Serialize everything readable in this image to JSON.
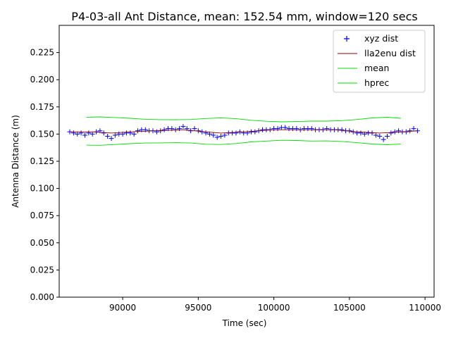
{
  "chart_data": {
    "type": "scatter",
    "title": "P4-03-all Ant Distance, mean: 152.54 mm, window=120 secs",
    "xlabel": "Time (sec)",
    "ylabel": "Antenna Distance (m)",
    "xlim": [
      85800,
      110600
    ],
    "ylim": [
      0.0,
      0.25
    ],
    "x_ticks": [
      90000,
      95000,
      100000,
      105000,
      110000
    ],
    "x_tick_labels": [
      "90000",
      "95000",
      "100000",
      "105000",
      "110000"
    ],
    "y_ticks": [
      0.0,
      0.025,
      0.05,
      0.075,
      0.1,
      0.125,
      0.15,
      0.175,
      0.2,
      0.225
    ],
    "y_tick_labels": [
      "0.000",
      "0.025",
      "0.050",
      "0.075",
      "0.100",
      "0.125",
      "0.150",
      "0.175",
      "0.200",
      "0.225"
    ],
    "grid": false,
    "legend_position": "top-right",
    "legend": [
      {
        "label": "xyz dist",
        "marker": "plus",
        "color": "#0000ff"
      },
      {
        "label": "lla2enu dist",
        "marker": "line",
        "color": "#8b0000"
      },
      {
        "label": "mean",
        "marker": "line",
        "color": "#00dd00"
      },
      {
        "label": "hprec",
        "marker": "line",
        "color": "#00dd00"
      }
    ],
    "series": [
      {
        "name": "xyz dist",
        "style": "plus",
        "color": "#0000ff",
        "x": [
          86500,
          86750,
          87000,
          87250,
          87500,
          87750,
          88000,
          88250,
          88500,
          88750,
          89000,
          89250,
          89500,
          89750,
          90000,
          90250,
          90500,
          90750,
          91000,
          91250,
          91500,
          91750,
          92000,
          92250,
          92500,
          92750,
          93000,
          93250,
          93500,
          93750,
          94000,
          94250,
          94500,
          94750,
          95000,
          95250,
          95500,
          95750,
          96000,
          96250,
          96500,
          96750,
          97000,
          97250,
          97500,
          97750,
          98000,
          98250,
          98500,
          98750,
          99000,
          99250,
          99500,
          99750,
          100000,
          100250,
          100500,
          100750,
          101000,
          101250,
          101500,
          101750,
          102000,
          102250,
          102500,
          102750,
          103000,
          103250,
          103500,
          103750,
          104000,
          104250,
          104500,
          104750,
          105000,
          105250,
          105500,
          105750,
          106000,
          106250,
          106500,
          106750,
          107000,
          107250,
          107500,
          107750,
          108000,
          108250,
          108500,
          108750,
          109000,
          109250,
          109500
        ],
        "y": [
          0.152,
          0.151,
          0.15,
          0.151,
          0.149,
          0.151,
          0.15,
          0.152,
          0.153,
          0.151,
          0.148,
          0.146,
          0.149,
          0.15,
          0.15,
          0.151,
          0.151,
          0.15,
          0.153,
          0.154,
          0.154,
          0.153,
          0.153,
          0.152,
          0.153,
          0.154,
          0.155,
          0.155,
          0.154,
          0.155,
          0.157,
          0.155,
          0.153,
          0.155,
          0.153,
          0.152,
          0.151,
          0.15,
          0.149,
          0.147,
          0.148,
          0.149,
          0.151,
          0.151,
          0.151,
          0.152,
          0.151,
          0.151,
          0.152,
          0.152,
          0.153,
          0.154,
          0.154,
          0.154,
          0.155,
          0.155,
          0.156,
          0.156,
          0.155,
          0.155,
          0.155,
          0.154,
          0.155,
          0.155,
          0.155,
          0.154,
          0.154,
          0.154,
          0.155,
          0.154,
          0.154,
          0.154,
          0.154,
          0.153,
          0.153,
          0.152,
          0.151,
          0.151,
          0.15,
          0.151,
          0.151,
          0.149,
          0.148,
          0.145,
          0.148,
          0.151,
          0.152,
          0.153,
          0.152,
          0.152,
          0.153,
          0.155,
          0.153
        ]
      },
      {
        "name": "lla2enu dist",
        "style": "line",
        "color": "#8b0000",
        "x": [
          86500,
          88000,
          89250,
          90500,
          92000,
          94000,
          95500,
          96500,
          98000,
          100000,
          102000,
          104000,
          105500,
          107000,
          108500,
          109500
        ],
        "y": [
          0.152,
          0.152,
          0.151,
          0.152,
          0.153,
          0.154,
          0.152,
          0.151,
          0.152,
          0.154,
          0.154,
          0.154,
          0.152,
          0.151,
          0.152,
          0.153
        ]
      },
      {
        "name": "mean",
        "style": "line",
        "color": "#00dd00",
        "x": [
          87600,
          88500,
          89500,
          90500,
          91500,
          92500,
          93500,
          94500,
          95500,
          96500,
          97500,
          98500,
          99500,
          100500,
          101500,
          102500,
          103500,
          104500,
          105500,
          106500,
          107500,
          108400
        ],
        "y": [
          0.1655,
          0.1658,
          0.1652,
          0.1645,
          0.1636,
          0.1633,
          0.1632,
          0.1634,
          0.1643,
          0.1649,
          0.1641,
          0.1627,
          0.1618,
          0.1613,
          0.1615,
          0.1619,
          0.1619,
          0.1624,
          0.1634,
          0.1648,
          0.1655,
          0.1645
        ]
      },
      {
        "name": "hprec",
        "style": "line",
        "color": "#00dd00",
        "x": [
          87600,
          88500,
          89500,
          90500,
          91500,
          92500,
          93500,
          94500,
          95500,
          96500,
          97500,
          98500,
          99500,
          100500,
          101500,
          102500,
          103500,
          104500,
          105500,
          106500,
          107500,
          108400
        ],
        "y": [
          0.1398,
          0.1397,
          0.1404,
          0.1412,
          0.1418,
          0.1419,
          0.1421,
          0.1418,
          0.1407,
          0.1404,
          0.1413,
          0.1428,
          0.1436,
          0.1443,
          0.1441,
          0.1436,
          0.1437,
          0.1432,
          0.1421,
          0.1409,
          0.1402,
          0.1408
        ]
      }
    ]
  }
}
